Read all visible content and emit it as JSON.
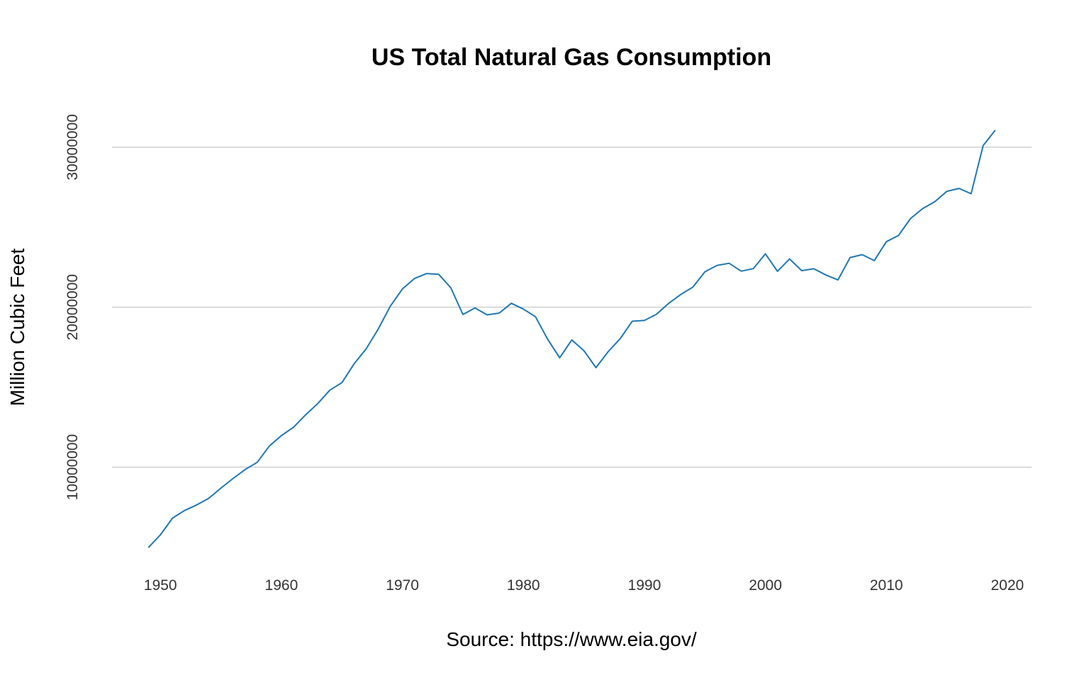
{
  "chart_data": {
    "type": "line",
    "title": "US Total Natural Gas Consumption",
    "xlabel": "Source: https://www.eia.gov/",
    "ylabel": "Million Cubic Feet",
    "xlim": [
      1946,
      2022
    ],
    "ylim": [
      4000000,
      33000000
    ],
    "x_ticks": [
      1950,
      1960,
      1970,
      1980,
      1990,
      2000,
      2010,
      2020
    ],
    "y_ticks": [
      10000000,
      20000000,
      30000000
    ],
    "y_tick_labels": [
      "10000000",
      "20000000",
      "30000000"
    ],
    "x_tick_labels": [
      "1950",
      "1960",
      "1970",
      "1980",
      "1990",
      "2000",
      "2010",
      "2020"
    ],
    "grid": "horizontal major only",
    "legend": "none",
    "colors": {
      "series": "#1f77b4",
      "grid": "#d0d0d0"
    },
    "series": [
      {
        "x": [
          1949,
          1950,
          1951,
          1952,
          1953,
          1954,
          1955,
          1956,
          1957,
          1958,
          1959,
          1960,
          1961,
          1962,
          1963,
          1964,
          1965,
          1966,
          1967,
          1968,
          1969,
          1970,
          1971,
          1972,
          1973,
          1974,
          1975,
          1976,
          1977,
          1978,
          1979,
          1980,
          1981,
          1982,
          1983,
          1984,
          1985,
          1986,
          1987,
          1988,
          1989,
          1990,
          1991,
          1992,
          1993,
          1994,
          1995,
          1996,
          1997,
          1998,
          1999,
          2000,
          2001,
          2002,
          2003,
          2004,
          2005,
          2006,
          2007,
          2008,
          2009,
          2010,
          2011,
          2012,
          2013,
          2014,
          2015,
          2016,
          2017,
          2018,
          2019
        ],
        "values": [
          4970000,
          5770000,
          6810000,
          7290000,
          7640000,
          8050000,
          8690000,
          9290000,
          9850000,
          10300000,
          11320000,
          11970000,
          12490000,
          13270000,
          13970000,
          14810000,
          15280000,
          16450000,
          17390000,
          18630000,
          20060000,
          21140000,
          21790000,
          22100000,
          22050000,
          21220000,
          19540000,
          19950000,
          19520000,
          19630000,
          20240000,
          19880000,
          19400000,
          18000000,
          16830000,
          17950000,
          17280000,
          16220000,
          17210000,
          18030000,
          19120000,
          19170000,
          19560000,
          20230000,
          20790000,
          21250000,
          22210000,
          22610000,
          22740000,
          22250000,
          22410000,
          23330000,
          22240000,
          23010000,
          22280000,
          22400000,
          22010000,
          21700000,
          23100000,
          23280000,
          22910000,
          24090000,
          24480000,
          25540000,
          26160000,
          26590000,
          27240000,
          27420000,
          27090000,
          30100000,
          31060000
        ]
      }
    ]
  }
}
